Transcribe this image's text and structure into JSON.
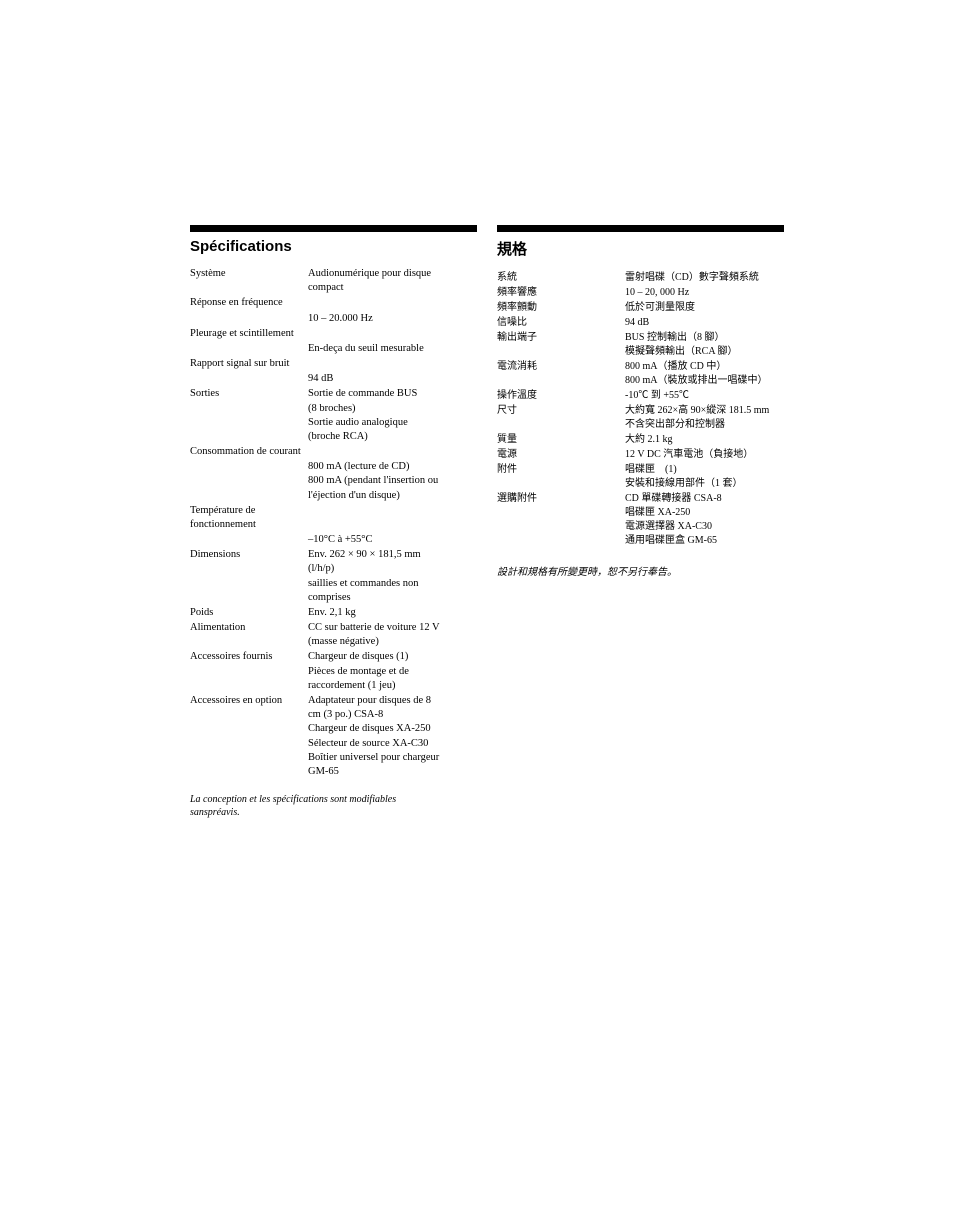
{
  "french": {
    "heading": "Spécifications",
    "specs": [
      {
        "label": "Système",
        "values": [
          "Audionumérique pour disque",
          "compact"
        ]
      },
      {
        "label": "Réponse en fréquence",
        "values": []
      },
      {
        "label": "",
        "values": [
          "10 – 20.000 Hz"
        ]
      },
      {
        "label": "Pleurage et scintillement",
        "values": []
      },
      {
        "label": "",
        "values": [
          "En-deça du seuil mesurable"
        ]
      },
      {
        "label": "Rapport signal sur bruit",
        "values": []
      },
      {
        "label": "",
        "values": [
          "94 dB"
        ]
      },
      {
        "label": "Sorties",
        "values": [
          "Sortie de commande BUS",
          "(8 broches)",
          "Sortie audio analogique",
          "(broche RCA)"
        ]
      },
      {
        "label": "Consommation de courant",
        "values": []
      },
      {
        "label": "",
        "values": [
          "800 mA (lecture de CD)",
          "800 mA (pendant l'insertion ou",
          "l'éjection d'un disque)"
        ]
      },
      {
        "label": "Température de fonctionnement",
        "values": []
      },
      {
        "label": "",
        "values": [
          "–10°C à +55°C"
        ]
      },
      {
        "label": "Dimensions",
        "values": [
          "Env. 262 × 90 × 181,5 mm",
          "(l/h/p)",
          "saillies et commandes non",
          "comprises"
        ]
      },
      {
        "label": "Poids",
        "values": [
          "Env. 2,1 kg"
        ]
      },
      {
        "label": "Alimentation",
        "values": [
          "CC sur batterie de voiture 12 V",
          "(masse négative)"
        ]
      },
      {
        "label": "Accessoires fournis",
        "values": [
          "Chargeur de disques (1)",
          "Pièces de montage et de",
          "raccordement (1 jeu)"
        ]
      },
      {
        "label": "Accessoires en option",
        "values": [
          "Adaptateur pour disques de 8",
          "cm (3 po.) CSA-8",
          "Chargeur de disques XA-250",
          "Sélecteur de source XA-C30",
          "Boîtier universel pour chargeur",
          "GM-65"
        ]
      }
    ],
    "disclaimer": [
      "La conception et les spécifications sont modifiables",
      "sanspréavis."
    ]
  },
  "chinese": {
    "heading": "規格",
    "specs": [
      {
        "label": "系統",
        "values": [
          "雷射唱碟（CD）數字聲頻系統"
        ]
      },
      {
        "label": "頻率響應",
        "values": [
          "10 – 20, 000 Hz"
        ]
      },
      {
        "label": "頻率顫動",
        "values": [
          "低於可測量限度"
        ]
      },
      {
        "label": "信噪比",
        "values": [
          "94 dB"
        ]
      },
      {
        "label": "輸出端子",
        "values": [
          "BUS 控制輸出（8 腳）",
          "模擬聲頻輸出（RCA 腳）"
        ]
      },
      {
        "label": "電流消耗",
        "values": [
          "800 mA（播放 CD 中）",
          "800 mA（裝放或排出一唱碟中）"
        ]
      },
      {
        "label": "操作溫度",
        "values": [
          "-10℃ 到 +55℃"
        ]
      },
      {
        "label": "尺寸",
        "values": [
          "大約寬 262×高 90×縱深 181.5 mm",
          "不含突出部分和控制器"
        ]
      },
      {
        "label": "質量",
        "values": [
          "大約 2.1 kg"
        ]
      },
      {
        "label": "電源",
        "values": [
          "12 V DC 汽車電池（負接地）"
        ]
      },
      {
        "label": "附件",
        "values": [
          "唱碟匣　(1)",
          "安裝和接線用部件（1 套）"
        ]
      },
      {
        "label": "選購附件",
        "values": [
          "CD 單碟轉接器 CSA-8",
          "唱碟匣 XA-250",
          "電源選擇器 XA-C30",
          "通用唱碟匣盒 GM-65"
        ]
      }
    ],
    "disclaimer": [
      "設計和規格有所變更時，恕不另行奉告。"
    ]
  },
  "colors": {
    "bar": "#000000",
    "text": "#000000",
    "background": "#ffffff"
  }
}
